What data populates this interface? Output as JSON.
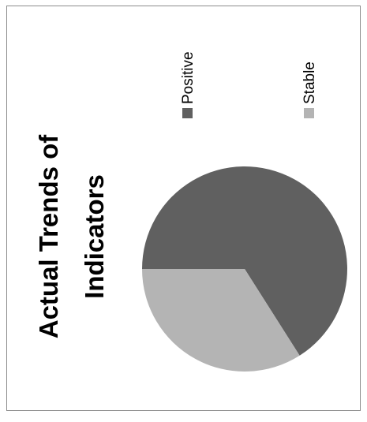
{
  "chart_data": {
    "type": "pie",
    "title": "Actual Trends of Indicators",
    "title_lines": [
      "Actual Trends of",
      "Indicators"
    ],
    "categories": [
      "Positive",
      "Stable"
    ],
    "values": [
      66,
      34
    ],
    "colors": [
      "#606060",
      "#b4b4b4"
    ],
    "legend": {
      "placement": "top",
      "entries": [
        {
          "label": "Positive",
          "color": "#606060"
        },
        {
          "label": "Stable",
          "color": "#b4b4b4"
        }
      ]
    }
  }
}
